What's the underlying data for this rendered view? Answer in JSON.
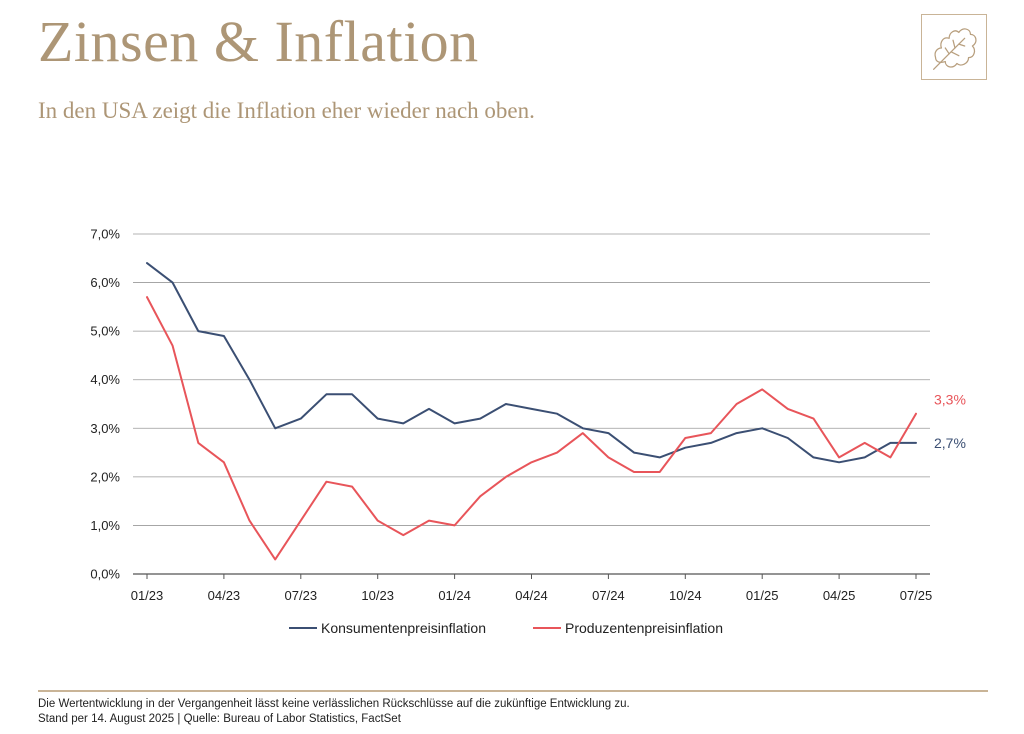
{
  "header": {
    "title": "Zinsen & Inflation",
    "subtitle": "In den USA zeigt die Inflation eher wieder nach oben.",
    "logo_icon": "oak-leaf-icon"
  },
  "colors": {
    "brand": "#ad9676",
    "series_consumer": "#3b4f73",
    "series_producer": "#e8555a",
    "grid": "#9a9a9a"
  },
  "chart_data": {
    "type": "line",
    "title": "",
    "xlabel": "",
    "ylabel": "",
    "ylim": [
      0,
      7
    ],
    "yticks": [
      "0,0%",
      "1,0%",
      "2,0%",
      "3,0%",
      "4,0%",
      "5,0%",
      "6,0%",
      "7,0%"
    ],
    "xtick_labels": [
      "01/23",
      "04/23",
      "07/23",
      "10/23",
      "01/24",
      "04/24",
      "07/24",
      "10/24",
      "01/25",
      "04/25",
      "07/25"
    ],
    "x": [
      "01/23",
      "02/23",
      "03/23",
      "04/23",
      "05/23",
      "06/23",
      "07/23",
      "08/23",
      "09/23",
      "10/23",
      "11/23",
      "12/23",
      "01/24",
      "02/24",
      "03/24",
      "04/24",
      "05/24",
      "06/24",
      "07/24",
      "08/24",
      "09/24",
      "10/24",
      "11/24",
      "12/24",
      "01/25",
      "02/25",
      "03/25",
      "04/25",
      "05/25",
      "06/25",
      "07/25"
    ],
    "series": [
      {
        "name": "Konsumentenpreisinflation",
        "color": "#3b4f73",
        "end_label": "2,7%",
        "values": [
          6.4,
          6.0,
          5.0,
          4.9,
          4.0,
          3.0,
          3.2,
          3.7,
          3.7,
          3.2,
          3.1,
          3.4,
          3.1,
          3.2,
          3.5,
          3.4,
          3.3,
          3.0,
          2.9,
          2.5,
          2.4,
          2.6,
          2.7,
          2.9,
          3.0,
          2.8,
          2.4,
          2.3,
          2.4,
          2.7,
          2.7
        ]
      },
      {
        "name": "Produzentenpreisinflation",
        "color": "#e8555a",
        "end_label": "3,3%",
        "values": [
          5.7,
          4.7,
          2.7,
          2.3,
          1.1,
          0.3,
          1.1,
          1.9,
          1.8,
          1.1,
          0.8,
          1.1,
          1.0,
          1.6,
          2.0,
          2.3,
          2.5,
          2.9,
          2.4,
          2.1,
          2.1,
          2.8,
          2.9,
          3.5,
          3.8,
          3.4,
          3.2,
          2.4,
          2.7,
          2.4,
          3.3
        ]
      }
    ],
    "legend_position": "bottom-center",
    "grid": true
  },
  "footer": {
    "disclaimer": "Die Wertentwicklung in der Vergangenheit lässt keine verlässlichen Rückschlüsse auf die zukünftige Entwicklung zu.",
    "source": "Stand per 14. August 2025 | Quelle: Bureau of Labor Statistics, FactSet"
  }
}
